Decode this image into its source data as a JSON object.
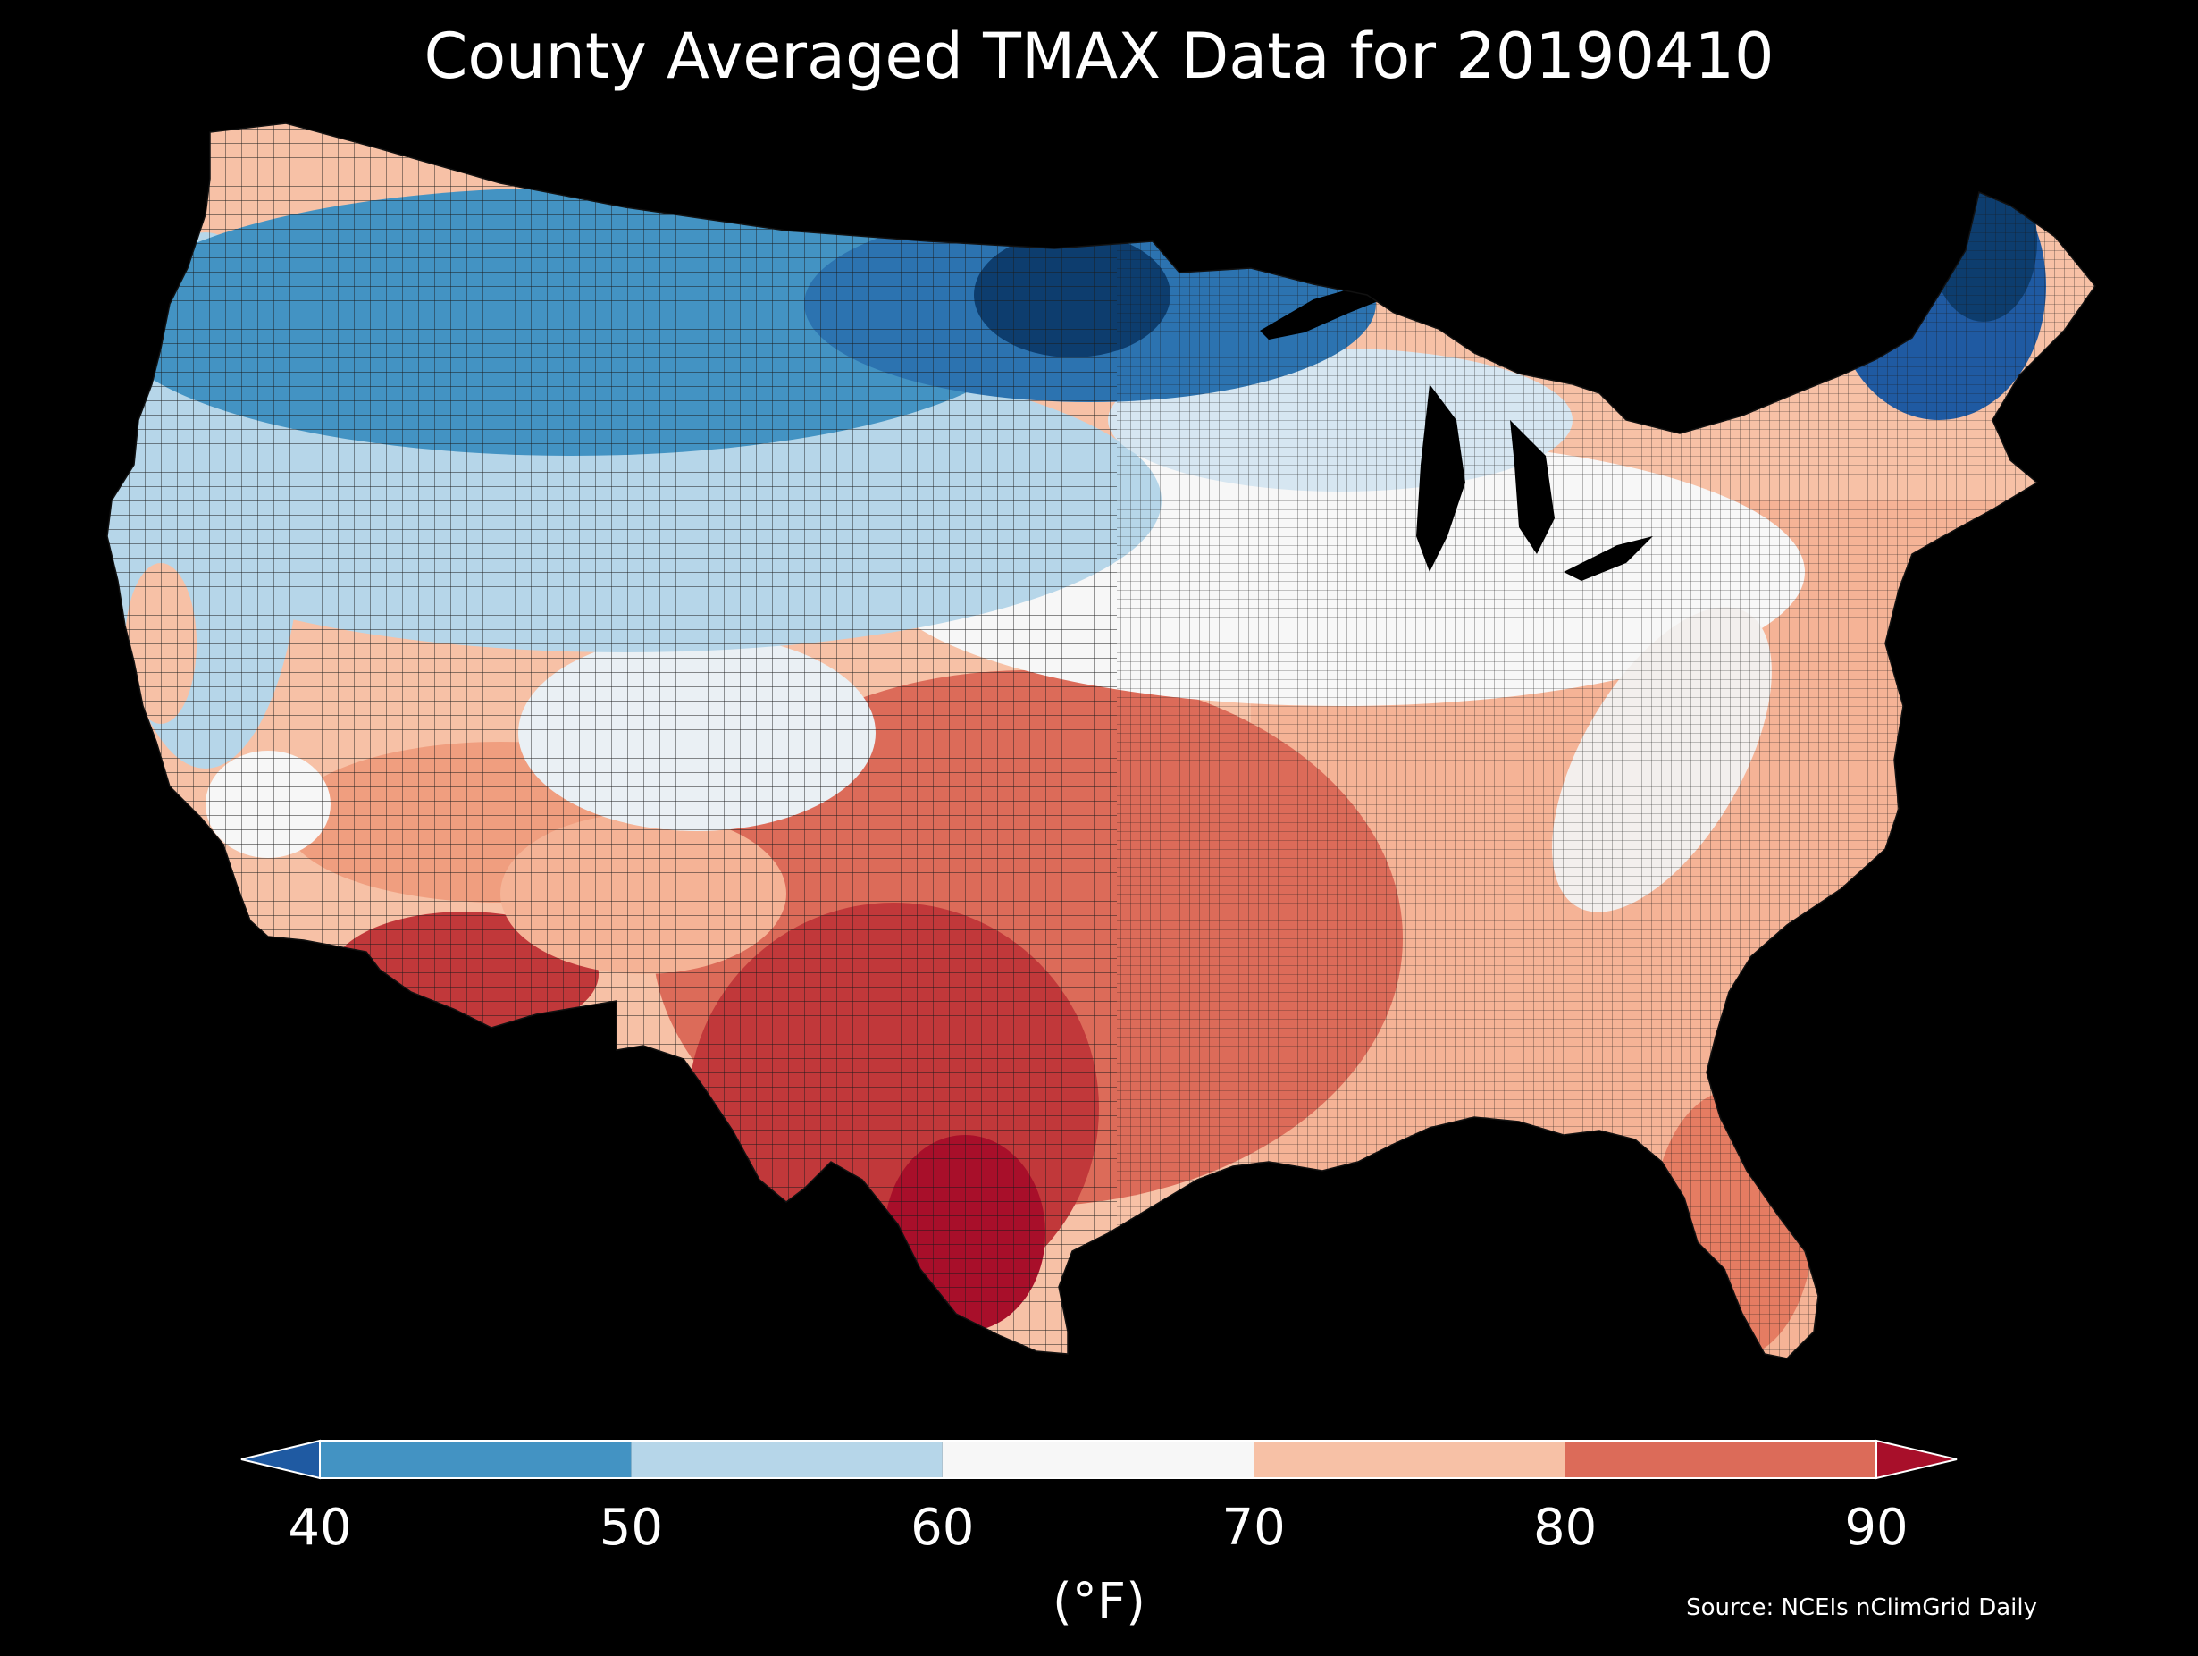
{
  "title": "County Averaged TMAX Data for 20190410",
  "colorbar": {
    "ticks": [
      "40",
      "50",
      "60",
      "70",
      "80",
      "90"
    ],
    "unit_label": "(°F)",
    "bins": [
      {
        "range": [
          40,
          50
        ],
        "color": "#4393c3"
      },
      {
        "range": [
          50,
          60
        ],
        "color": "#b6d6e9"
      },
      {
        "range": [
          60,
          70
        ],
        "color": "#f7f7f7"
      },
      {
        "range": [
          70,
          80
        ],
        "color": "#f7c1a6"
      },
      {
        "range": [
          80,
          90
        ],
        "color": "#dc6b59"
      }
    ],
    "under_color": "#1f5aa2",
    "over_color": "#a80f2a"
  },
  "source": "Source: NCEIs nClimGrid Daily",
  "map": {
    "region": "contiguous United States counties",
    "variable": "TMAX",
    "date": "20190410",
    "background": "#000000",
    "boundary_color": "#111111"
  }
}
